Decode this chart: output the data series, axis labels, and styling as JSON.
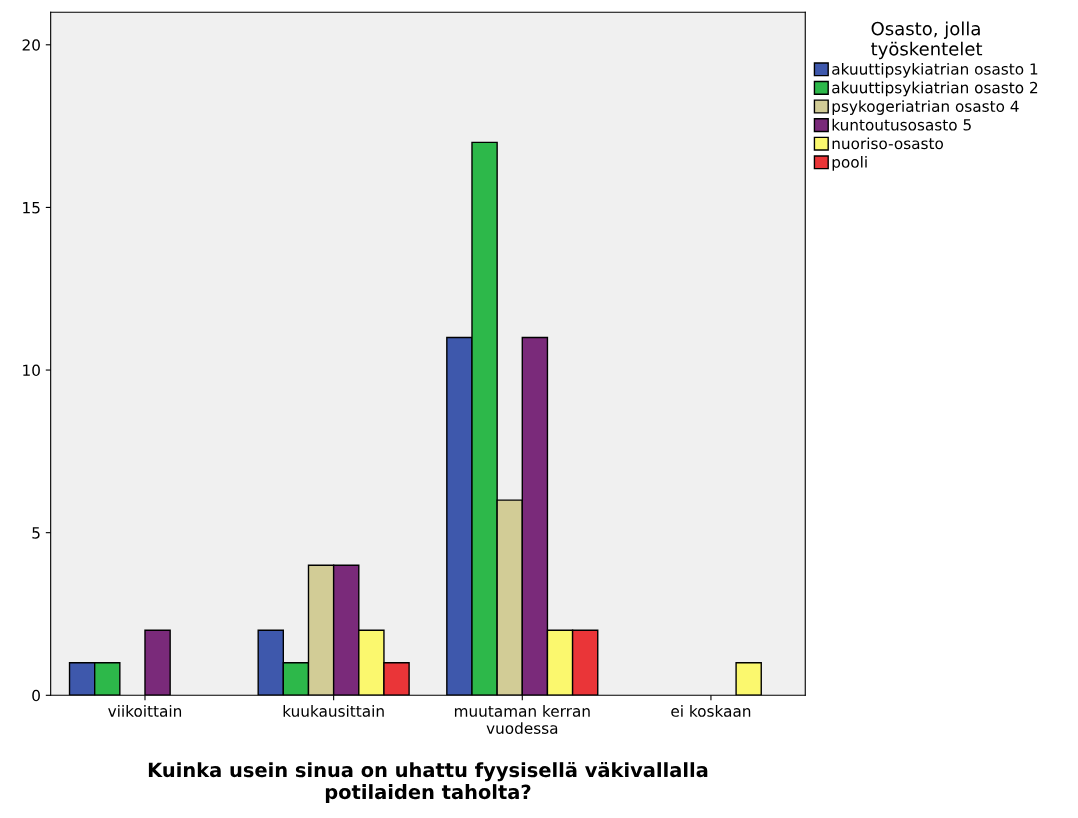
{
  "chart_data": {
    "type": "bar",
    "xlabel": "Kuinka usein sinua on uhattu fyysisellä väkivallalla\npotilaiden taholta?",
    "legend_title": "Osasto, jolla\ntyöskentelet",
    "categories": [
      "viikoittain",
      "kuukausittain",
      "muutaman kerran\nvuodessa",
      "ei koskaan"
    ],
    "series": [
      {
        "name": "akuuttipsykiatrian osasto 1",
        "color": "#3e58ac",
        "values": [
          1,
          2,
          11,
          null
        ]
      },
      {
        "name": "akuuttipsykiatrian osasto 2",
        "color": "#2db84a",
        "values": [
          1,
          1,
          17,
          null
        ]
      },
      {
        "name": "psykogeriatrian osasto 4",
        "color": "#d2cc96",
        "values": [
          null,
          4,
          6,
          null
        ]
      },
      {
        "name": "kuntoutusosasto 5",
        "color": "#7a2a7a",
        "values": [
          2,
          4,
          11,
          null
        ]
      },
      {
        "name": "nuoriso-osasto",
        "color": "#fbf86e",
        "values": [
          null,
          2,
          2,
          1
        ]
      },
      {
        "name": "pooli",
        "color": "#ea3538",
        "values": [
          null,
          1,
          2,
          null
        ]
      }
    ],
    "ylim": [
      0,
      21
    ],
    "yticks": [
      0,
      5,
      10,
      15,
      20
    ],
    "grid": false,
    "legend": "top right"
  }
}
